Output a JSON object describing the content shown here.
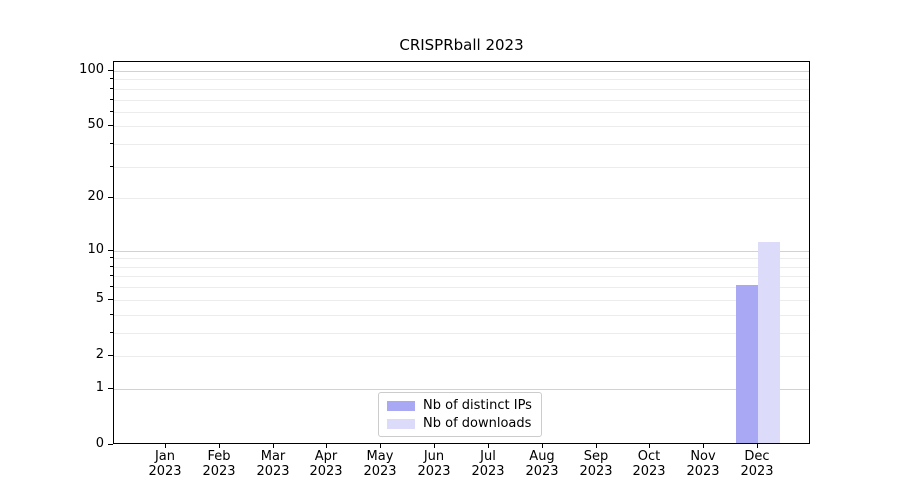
{
  "chart_data": {
    "type": "bar",
    "title": "CRISPRball 2023",
    "categories": [
      "Jan",
      "Feb",
      "Mar",
      "Apr",
      "May",
      "Jun",
      "Jul",
      "Aug",
      "Sep",
      "Oct",
      "Nov",
      "Dec"
    ],
    "year_label": "2023",
    "series": [
      {
        "name": "Nb of distinct IPs",
        "color": "#a8a8f4",
        "values": [
          0,
          0,
          0,
          0,
          0,
          0,
          0,
          0,
          0,
          0,
          0,
          6
        ]
      },
      {
        "name": "Nb of downloads",
        "color": "#dcdcfa",
        "values": [
          0,
          0,
          0,
          0,
          0,
          0,
          0,
          0,
          0,
          0,
          0,
          11
        ]
      }
    ],
    "yscale": "log1p",
    "y_tick_labels": [
      0,
      1,
      2,
      5,
      10,
      20,
      50,
      100
    ],
    "y_major_gridlines": [
      1,
      10,
      100
    ],
    "y_minor_gridlines": [
      2,
      3,
      4,
      5,
      6,
      7,
      8,
      9,
      20,
      30,
      40,
      50,
      60,
      70,
      80,
      90
    ],
    "ylim": [
      0,
      112
    ],
    "xlabel": "",
    "ylabel": "",
    "grid": "horizontal major+minor",
    "legend_position": "bottom-center-inside",
    "colors": {
      "major_grid": "#d2d2d2",
      "minor_grid": "#ececec",
      "spine": "#000000",
      "legend_border": "#cccccc"
    }
  }
}
